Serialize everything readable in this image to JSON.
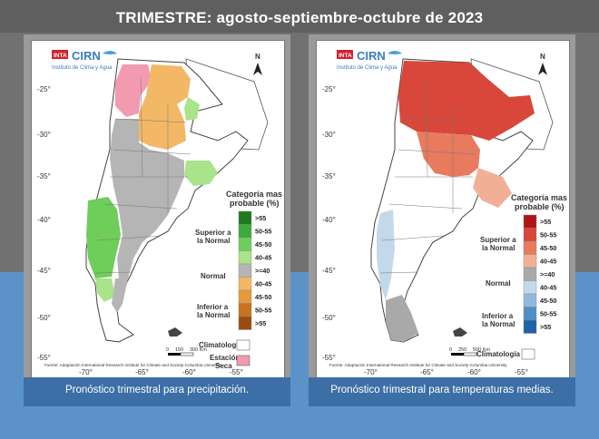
{
  "header": {
    "title": "TRIMESTRE: agosto-septiembre-octubre de 2023"
  },
  "maps": [
    {
      "id": "precip",
      "caption": "Pronóstico trimestral para precipitación.",
      "logo": {
        "inta": "INTA",
        "cirn": "CIRN",
        "institute": "Instituto de Clima y Agua"
      },
      "north": "N",
      "lat_labels": [
        "-25°",
        "-30°",
        "-35°",
        "-40°",
        "-45°",
        "-50°",
        "-55°"
      ],
      "lon_labels": [
        "-70°",
        "-65°",
        "-60°",
        "-55°"
      ],
      "legend": {
        "title1": "Categoría mas",
        "title2": "probable (%)",
        "groups": {
          "superior1": "Superior a",
          "superior2": "la Normal",
          "normal": "Normal",
          "inferior1": "Inferior a",
          "inferior2": "la Normal"
        },
        "items": [
          {
            "label": ">55",
            "color": "#1e7a1e"
          },
          {
            "label": "50-55",
            "color": "#3cab3c"
          },
          {
            "label": "45-50",
            "color": "#6fcd5a"
          },
          {
            "label": "40-45",
            "color": "#a9e38a"
          },
          {
            "label": ">=40",
            "color": "#b5b5b5"
          },
          {
            "label": "40-45",
            "color": "#f2b866"
          },
          {
            "label": "45-50",
            "color": "#e69a3a"
          },
          {
            "label": "50-55",
            "color": "#c8731e"
          },
          {
            "label": ">55",
            "color": "#9b4d10"
          }
        ],
        "clim_label": "Climatología",
        "clim_color": "#ffffff",
        "dry_label1": "Estación",
        "dry_label2": "Seca",
        "dry_color": "#f29ab0"
      },
      "scale": {
        "labels": [
          "0",
          "150",
          "300 Km"
        ]
      },
      "source": "Fuente: Adaptación International Research Institute for Climate and Society-Columbia University"
    },
    {
      "id": "temp",
      "caption": "Pronóstico trimestral para temperaturas medias.",
      "logo": {
        "inta": "INTA",
        "cirn": "CIRN",
        "institute": "Instituto de Clima y Agua"
      },
      "north": "N",
      "lat_labels": [
        "-25°",
        "-30°",
        "-35°",
        "-40°",
        "-45°",
        "-50°",
        "-55°"
      ],
      "lon_labels": [
        "-70°",
        "-65°",
        "-60°",
        "-55°"
      ],
      "legend": {
        "title1": "Categoría mas",
        "title2": "probable (%)",
        "groups": {
          "superior1": "Superior a",
          "superior2": "la Normal",
          "normal": "Normal",
          "inferior1": "Inferior a",
          "inferior2": "la Normal"
        },
        "items": [
          {
            "label": ">55",
            "color": "#b01515"
          },
          {
            "label": "50-55",
            "color": "#d9463a"
          },
          {
            "label": "45-50",
            "color": "#e87a5e"
          },
          {
            "label": "40-45",
            "color": "#f1b096"
          },
          {
            "label": ">=40",
            "color": "#a9a9a9"
          },
          {
            "label": "40-45",
            "color": "#c3d9ea"
          },
          {
            "label": "45-50",
            "color": "#8fb8dc"
          },
          {
            "label": "50-55",
            "color": "#4f8fc6"
          },
          {
            "label": ">55",
            "color": "#1f63a8"
          }
        ],
        "clim_label": "Climatología",
        "clim_color": "#ffffff"
      },
      "scale": {
        "labels": [
          "0",
          "250",
          "500 Km"
        ]
      },
      "source": "Fuente: Adaptación International Research Institute for Climate and Society-Columbia University"
    }
  ]
}
